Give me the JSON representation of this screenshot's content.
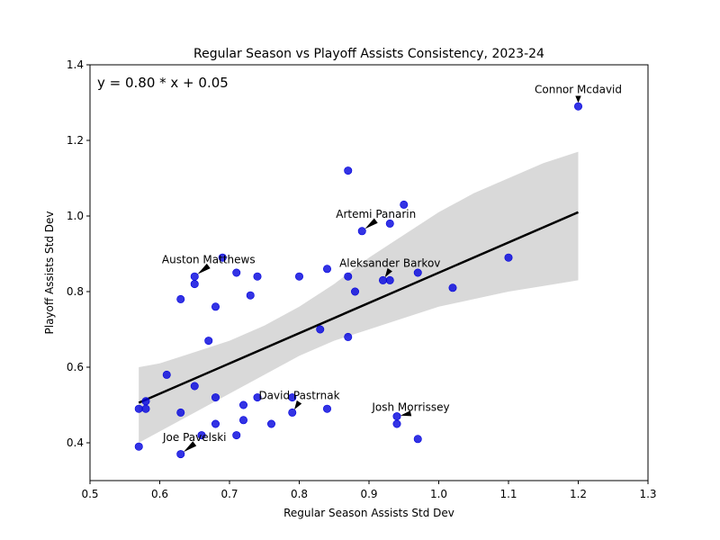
{
  "chart_data": {
    "type": "scatter",
    "title": "Regular Season vs Playoff Assists Consistency, 2023-24",
    "xlabel": "Regular Season Assists Std Dev",
    "ylabel": "Playoff Assists Std Dev",
    "xlim": [
      0.5,
      1.3
    ],
    "ylim": [
      0.3,
      1.4
    ],
    "xticks": [
      "0.5",
      "0.6",
      "0.7",
      "0.8",
      "0.9",
      "1.0",
      "1.1",
      "1.2",
      "1.3"
    ],
    "yticks": [
      "0.4",
      "0.6",
      "0.8",
      "1.0",
      "1.2",
      "1.4"
    ],
    "grid": false,
    "equation": "y = 0.80 * x + 0.05",
    "regression": {
      "slope": 0.8,
      "intercept": 0.05,
      "x_range": [
        0.57,
        1.2
      ]
    },
    "confidence_band": {
      "x": [
        0.57,
        0.6,
        0.65,
        0.7,
        0.75,
        0.8,
        0.85,
        0.9,
        0.95,
        1.0,
        1.05,
        1.1,
        1.15,
        1.2
      ],
      "lower": [
        0.4,
        0.43,
        0.48,
        0.53,
        0.58,
        0.63,
        0.67,
        0.7,
        0.73,
        0.76,
        0.78,
        0.8,
        0.815,
        0.83
      ],
      "upper": [
        0.6,
        0.61,
        0.64,
        0.67,
        0.71,
        0.76,
        0.82,
        0.89,
        0.95,
        1.01,
        1.06,
        1.1,
        1.14,
        1.17
      ]
    },
    "points": [
      {
        "x": 1.2,
        "y": 1.29
      },
      {
        "x": 0.87,
        "y": 1.12
      },
      {
        "x": 0.95,
        "y": 1.03
      },
      {
        "x": 0.93,
        "y": 0.98
      },
      {
        "x": 0.89,
        "y": 0.96
      },
      {
        "x": 1.1,
        "y": 0.89
      },
      {
        "x": 0.69,
        "y": 0.89
      },
      {
        "x": 0.84,
        "y": 0.86
      },
      {
        "x": 0.71,
        "y": 0.85
      },
      {
        "x": 0.97,
        "y": 0.85
      },
      {
        "x": 0.65,
        "y": 0.84
      },
      {
        "x": 0.74,
        "y": 0.84
      },
      {
        "x": 0.8,
        "y": 0.84
      },
      {
        "x": 0.87,
        "y": 0.84
      },
      {
        "x": 0.92,
        "y": 0.83
      },
      {
        "x": 0.93,
        "y": 0.83
      },
      {
        "x": 0.65,
        "y": 0.82
      },
      {
        "x": 1.02,
        "y": 0.81
      },
      {
        "x": 0.88,
        "y": 0.8
      },
      {
        "x": 0.73,
        "y": 0.79
      },
      {
        "x": 0.63,
        "y": 0.78
      },
      {
        "x": 0.68,
        "y": 0.76
      },
      {
        "x": 0.83,
        "y": 0.7
      },
      {
        "x": 0.87,
        "y": 0.68
      },
      {
        "x": 0.67,
        "y": 0.67
      },
      {
        "x": 0.61,
        "y": 0.58
      },
      {
        "x": 0.65,
        "y": 0.55
      },
      {
        "x": 0.68,
        "y": 0.52
      },
      {
        "x": 0.74,
        "y": 0.52
      },
      {
        "x": 0.79,
        "y": 0.52
      },
      {
        "x": 0.58,
        "y": 0.51
      },
      {
        "x": 0.72,
        "y": 0.5
      },
      {
        "x": 0.57,
        "y": 0.49
      },
      {
        "x": 0.58,
        "y": 0.49
      },
      {
        "x": 0.84,
        "y": 0.49
      },
      {
        "x": 0.63,
        "y": 0.48
      },
      {
        "x": 0.79,
        "y": 0.48
      },
      {
        "x": 0.94,
        "y": 0.47
      },
      {
        "x": 0.72,
        "y": 0.46
      },
      {
        "x": 0.68,
        "y": 0.45
      },
      {
        "x": 0.76,
        "y": 0.45
      },
      {
        "x": 0.94,
        "y": 0.45
      },
      {
        "x": 0.66,
        "y": 0.42
      },
      {
        "x": 0.71,
        "y": 0.42
      },
      {
        "x": 0.97,
        "y": 0.41
      },
      {
        "x": 0.57,
        "y": 0.39
      },
      {
        "x": 0.63,
        "y": 0.37
      }
    ],
    "annotations": [
      {
        "label": "Connor Mcdavid",
        "point": [
          1.2,
          1.29
        ],
        "text_at": [
          1.2,
          1.325
        ]
      },
      {
        "label": "Artemi Panarin",
        "point": [
          0.89,
          0.96
        ],
        "text_at": [
          0.91,
          0.995
        ]
      },
      {
        "label": "Auston Matthews",
        "point": [
          0.65,
          0.84
        ],
        "text_at": [
          0.67,
          0.875
        ]
      },
      {
        "label": "Aleksander Barkov",
        "point": [
          0.92,
          0.83
        ],
        "text_at": [
          0.93,
          0.865
        ]
      },
      {
        "label": "David Pastrnak",
        "point": [
          0.79,
          0.48
        ],
        "text_at": [
          0.8,
          0.515
        ]
      },
      {
        "label": "Josh Morrissey",
        "point": [
          0.94,
          0.47
        ],
        "text_at": [
          0.96,
          0.485
        ]
      },
      {
        "label": "Joe Pavelski",
        "point": [
          0.63,
          0.37
        ],
        "text_at": [
          0.65,
          0.405
        ]
      }
    ],
    "colors": {
      "points": "#0000dd",
      "line": "#000000",
      "band": "#d9d9d9"
    }
  }
}
